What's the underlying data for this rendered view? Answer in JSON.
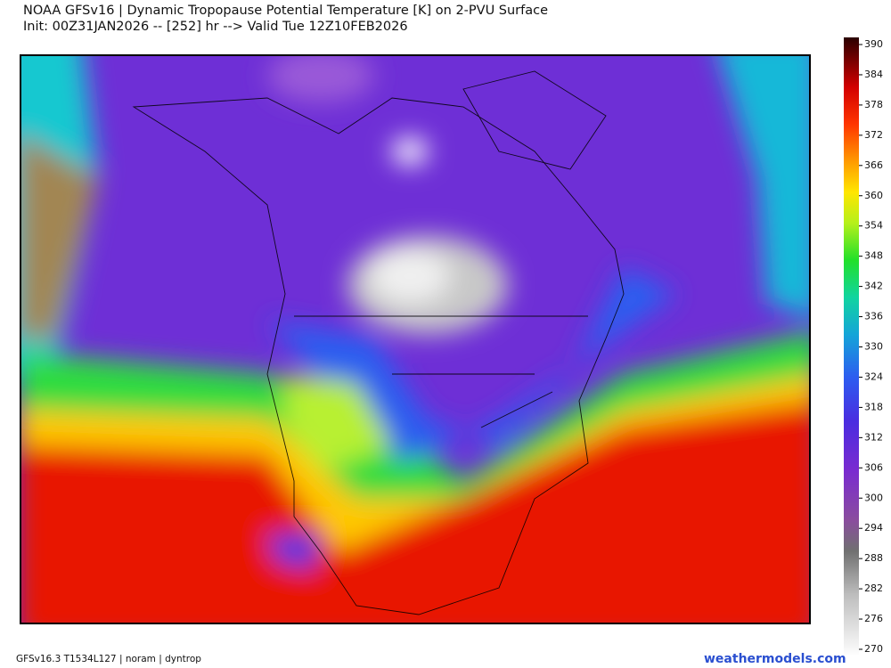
{
  "header": {
    "title": "NOAA GFSv16 |  Dynamic Tropopause Potential Temperature [K] on 2-PVU Surface",
    "subtitle": "Init: 00Z31JAN2026 -- [252] hr --> Valid Tue 12Z10FEB2026"
  },
  "colorbar": {
    "ticks": [
      270,
      276,
      282,
      288,
      294,
      300,
      306,
      312,
      318,
      324,
      330,
      336,
      342,
      348,
      354,
      360,
      366,
      372,
      378,
      384,
      390
    ]
  },
  "footer": {
    "left": "GFSv16.3 T1534L127 | noram | dyntrop",
    "right": "weathermodels.com"
  }
}
